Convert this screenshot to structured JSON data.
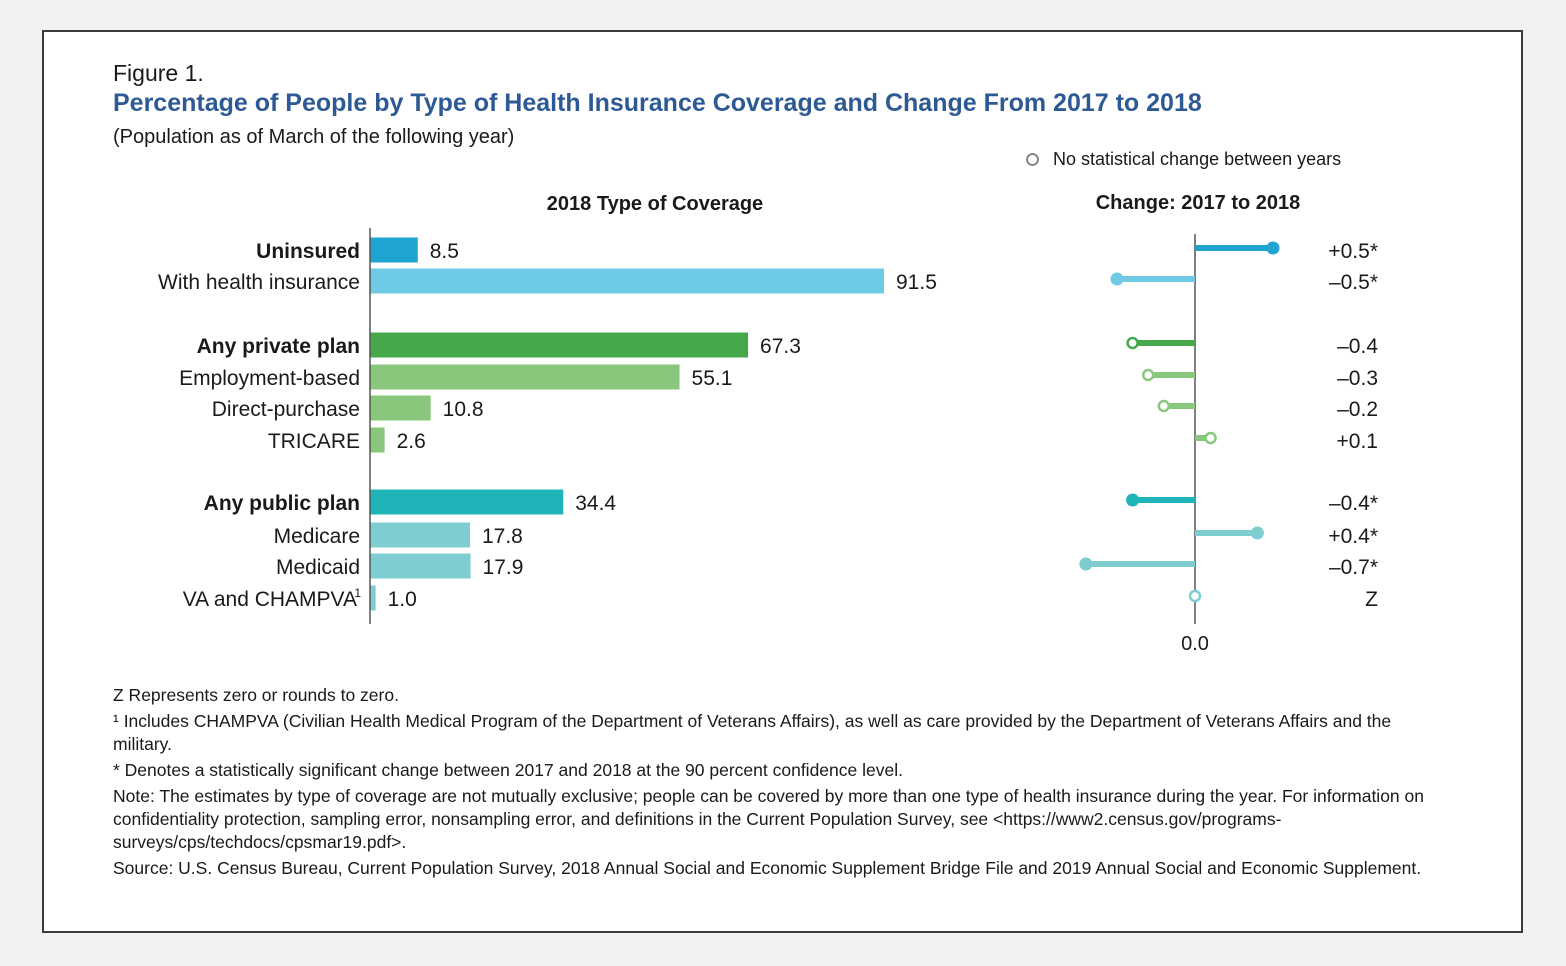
{
  "figure_label": "Figure 1.",
  "title": "Percentage of People by Type of Health Insurance Coverage and Change From 2017 to 2018",
  "subtitle": "(Population as of March of the following year)",
  "legend": {
    "label": "No statistical change between years",
    "marker_color": "#888888"
  },
  "chart_data": [
    {
      "type": "bar",
      "orientation": "horizontal",
      "title": "2018 Type of Coverage",
      "categories": [
        "Uninsured",
        "With health insurance",
        "Any private plan",
        "Employment-based",
        "Direct-purchase",
        "TRICARE",
        "Any public plan",
        "Medicare",
        "Medicaid",
        "VA and CHAMPVA"
      ],
      "category_superscripts": [
        "",
        "",
        "",
        "",
        "",
        "",
        "",
        "",
        "",
        "1"
      ],
      "bold_categories": [
        "Uninsured",
        "Any private plan",
        "Any public plan"
      ],
      "values": [
        8.5,
        91.5,
        67.3,
        55.1,
        10.8,
        2.6,
        34.4,
        17.8,
        17.9,
        1.0
      ],
      "value_labels": [
        "8.5",
        "91.5",
        "67.3",
        "55.1",
        "10.8",
        "2.6",
        "34.4",
        "17.8",
        "17.9",
        "1.0"
      ],
      "colors": [
        "#1fa3d1",
        "#6fcbe5",
        "#45a94b",
        "#88c77c",
        "#88c77c",
        "#88c77c",
        "#1fb4b8",
        "#7dcdd1",
        "#7dcdd1",
        "#7dcdd1"
      ],
      "groups": [
        [
          0,
          1
        ],
        [
          2,
          3,
          4,
          5
        ],
        [
          6,
          7,
          8,
          9
        ]
      ]
    },
    {
      "type": "lollipop",
      "orientation": "horizontal",
      "title": "Change: 2017 to 2018",
      "categories": [
        "Uninsured",
        "With health insurance",
        "Any private plan",
        "Employment-based",
        "Direct-purchase",
        "TRICARE",
        "Any public plan",
        "Medicare",
        "Medicaid",
        "VA and CHAMPVA"
      ],
      "values": [
        0.5,
        -0.5,
        -0.4,
        -0.3,
        -0.2,
        0.1,
        -0.4,
        0.4,
        -0.7,
        0.0
      ],
      "value_labels": [
        "+0.5*",
        "–0.5*",
        "–0.4",
        "–0.3",
        "–0.2",
        "+0.1",
        "–0.4*",
        "+0.4*",
        "–0.7*",
        "Z"
      ],
      "significant": [
        true,
        true,
        false,
        false,
        false,
        false,
        true,
        true,
        true,
        false
      ],
      "colors": [
        "#1fa3d1",
        "#6fcbe5",
        "#45a94b",
        "#88c77c",
        "#88c77c",
        "#88c77c",
        "#1fb4b8",
        "#7dcdd1",
        "#7dcdd1",
        "#7dcdd1"
      ],
      "x_tick_label": "0.0"
    }
  ],
  "footnotes": [
    "Z Represents zero or rounds to zero.",
    "¹ Includes CHAMPVA (Civilian Health Medical Program of the Department of Veterans Affairs), as well as care provided by the Department of Veterans Affairs and the military.",
    "* Denotes a statistically significant change between 2017 and 2018 at the 90 percent confidence level.",
    "Note: The estimates by type of coverage are not mutually exclusive; people can be covered by more than one type of health insurance during the year. For information on confidentiality protection, sampling error, nonsampling error, and definitions in the Current Population Survey, see <https://www2.census.gov/programs-surveys/cps/techdocs/cpsmar19.pdf>.",
    "Source: U.S. Census Bureau, Current Population Survey, 2018 Annual Social and Economic Supplement Bridge File and 2019 Annual Social and Economic Supplement."
  ]
}
